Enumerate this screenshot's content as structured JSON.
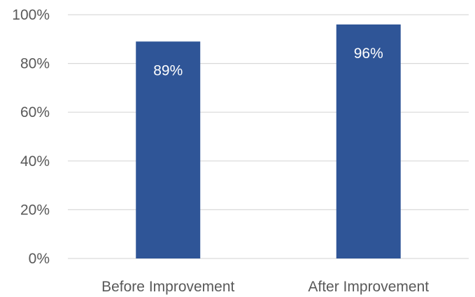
{
  "chart_data": {
    "type": "bar",
    "categories": [
      "Before Improvement",
      "After Improvement"
    ],
    "values": [
      89,
      96
    ],
    "value_labels": [
      "89%",
      "96%"
    ],
    "title": "",
    "xlabel": "",
    "ylabel": "",
    "ylim": [
      0,
      100
    ],
    "yticks": [
      0,
      20,
      40,
      60,
      80,
      100
    ],
    "ytick_labels": [
      "0%",
      "20%",
      "40%",
      "60%",
      "80%",
      "100%"
    ],
    "grid": true,
    "legend": "none",
    "colors": {
      "bar": "#2f5597",
      "grid": "#d9d9d9",
      "axis_text": "#595959",
      "data_label": "#ffffff"
    }
  }
}
